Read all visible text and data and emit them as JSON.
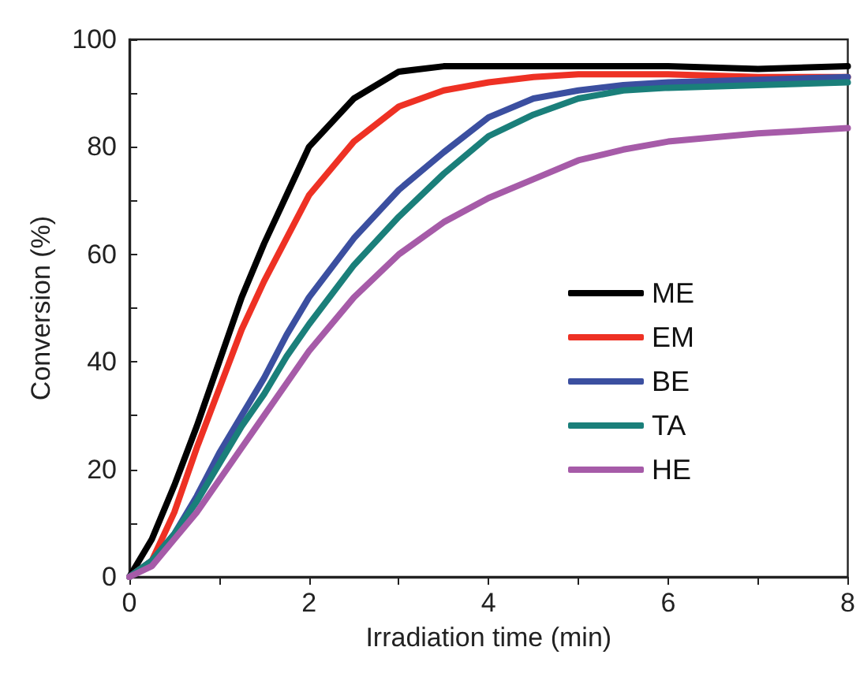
{
  "chart_data": {
    "type": "line",
    "xlabel": "Irradiation time (min)",
    "ylabel": "Conversion (%)",
    "x": [
      0,
      0.25,
      0.5,
      0.75,
      1,
      1.25,
      1.5,
      1.75,
      2,
      2.5,
      3,
      3.5,
      4,
      4.5,
      5,
      5.5,
      6,
      7,
      8
    ],
    "series": [
      {
        "name": "ME",
        "color": "#000000",
        "values": [
          0,
          7,
          17,
          28,
          40,
          52,
          62,
          71,
          80,
          89,
          94,
          95,
          95,
          95,
          95,
          95,
          95,
          94.5,
          95
        ]
      },
      {
        "name": "EM",
        "color": "#ee3124",
        "values": [
          0,
          3,
          12,
          24,
          35,
          46,
          55,
          63,
          71,
          81,
          87.5,
          90.5,
          92,
          93,
          93.5,
          93.5,
          93.5,
          93,
          93
        ]
      },
      {
        "name": "BE",
        "color": "#3b4fa0",
        "values": [
          0,
          3,
          8,
          15,
          23,
          30,
          37,
          45,
          52,
          63,
          72,
          79,
          85.5,
          89,
          90.5,
          91.5,
          92,
          92.5,
          93
        ]
      },
      {
        "name": "TA",
        "color": "#1a7f7a",
        "values": [
          0,
          3,
          8,
          14,
          21,
          28,
          34,
          41,
          47,
          58,
          67,
          75,
          82,
          86,
          89,
          90.5,
          91,
          91.5,
          92
        ]
      },
      {
        "name": "HE",
        "color": "#a65ba8",
        "values": [
          0,
          2,
          7,
          12,
          18,
          24,
          30,
          36,
          42,
          52,
          60,
          66,
          70.5,
          74,
          77.5,
          79.5,
          81,
          82.5,
          83.5
        ]
      }
    ],
    "xlim": [
      0,
      8
    ],
    "xticks": [
      0,
      {
        "value": 1,
        "label": null
      },
      2,
      {
        "value": 3,
        "label": null
      },
      4,
      {
        "value": 5,
        "label": null
      },
      6,
      {
        "value": 7,
        "label": null
      },
      8
    ],
    "ylim": [
      0,
      100
    ],
    "yticks": [
      0,
      {
        "value": 10,
        "label": null
      },
      20,
      {
        "value": 30,
        "label": null
      },
      40,
      {
        "value": 50,
        "label": null
      },
      60,
      {
        "value": 70,
        "label": null
      },
      80,
      {
        "value": 90,
        "label": null
      },
      100
    ],
    "grid": false,
    "legend": "right",
    "marker": "none",
    "line_style": "solid"
  }
}
